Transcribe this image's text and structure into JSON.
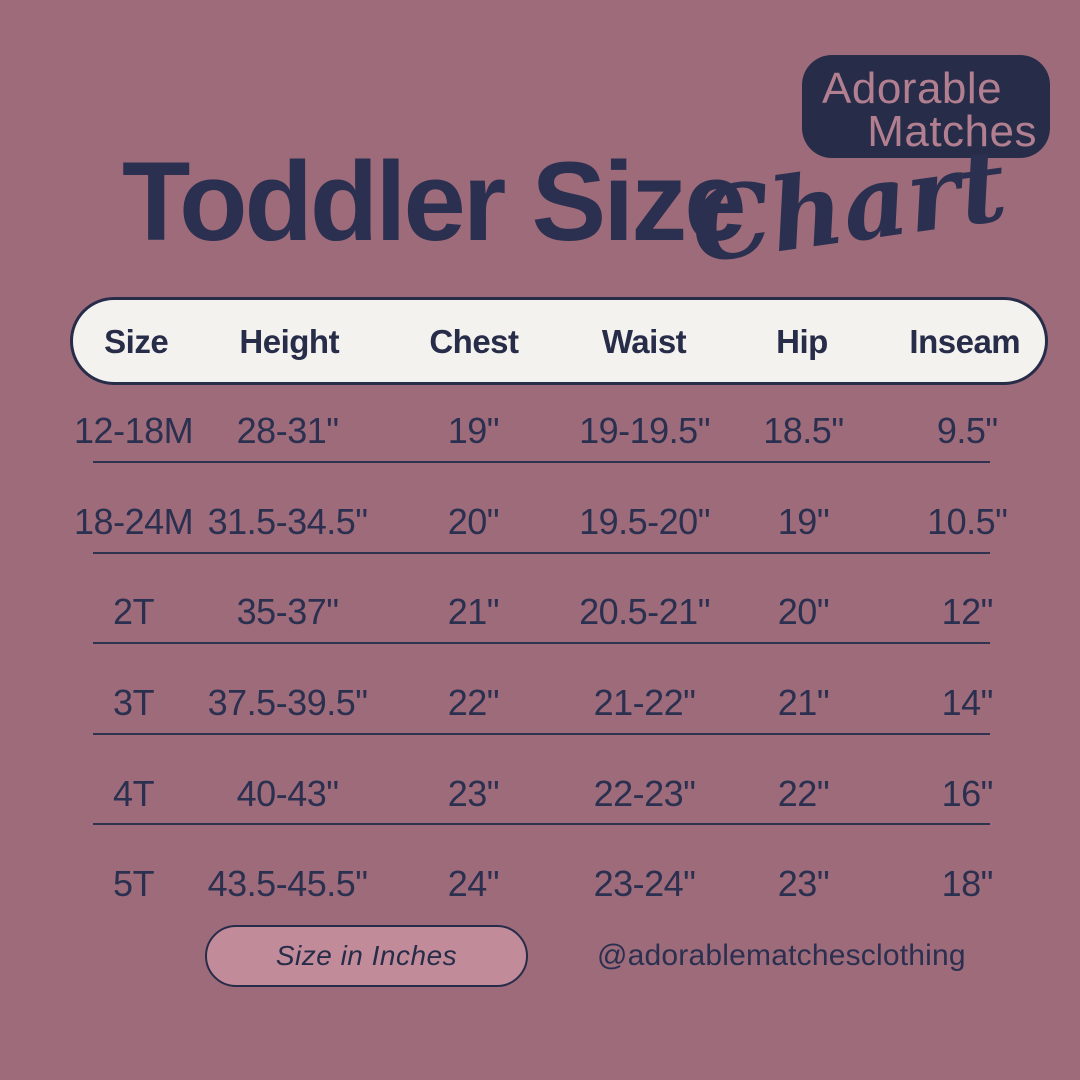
{
  "logo": {
    "line1": "Adorable",
    "line2": "Matches"
  },
  "title": {
    "main": "Toddler Size",
    "script": "Chart"
  },
  "table": {
    "headers": [
      "Size",
      "Height",
      "Chest",
      "Waist",
      "Hip",
      "Inseam"
    ],
    "rows": [
      [
        "12-18M",
        "28-31\"",
        "19\"",
        "19-19.5\"",
        "18.5\"",
        "9.5\""
      ],
      [
        "18-24M",
        "31.5-34.5\"",
        "20\"",
        "19.5-20\"",
        "19\"",
        "10.5\""
      ],
      [
        "2T",
        "35-37\"",
        "21\"",
        "20.5-21\"",
        "20\"",
        "12\""
      ],
      [
        "3T",
        "37.5-39.5\"",
        "22\"",
        "21-22\"",
        "21\"",
        "14\""
      ],
      [
        "4T",
        "40-43\"",
        "23\"",
        "22-23\"",
        "22\"",
        "16\""
      ],
      [
        "5T",
        "43.5-45.5\"",
        "24\"",
        "23-24\"",
        "23\"",
        "18\""
      ]
    ]
  },
  "footer": {
    "unit_label": "Size in Inches",
    "handle": "@adorablematchesclothing"
  },
  "colors": {
    "background": "#9e6b7a",
    "navy": "#2b3050",
    "badge_navy": "#272c49",
    "badge_text_pink": "#b17f90",
    "header_pill_fill": "#f4f2ef",
    "unit_pill_fill": "#c28b99"
  },
  "chart_data": {
    "type": "table",
    "title": "Toddler Size Chart",
    "unit": "inches",
    "columns": [
      "Size",
      "Height",
      "Chest",
      "Waist",
      "Hip",
      "Inseam"
    ],
    "rows": [
      {
        "size": "12-18M",
        "height": "28-31",
        "chest": "19",
        "waist": "19-19.5",
        "hip": "18.5",
        "inseam": "9.5"
      },
      {
        "size": "18-24M",
        "height": "31.5-34.5",
        "chest": "20",
        "waist": "19.5-20",
        "hip": "19",
        "inseam": "10.5"
      },
      {
        "size": "2T",
        "height": "35-37",
        "chest": "21",
        "waist": "20.5-21",
        "hip": "20",
        "inseam": "12"
      },
      {
        "size": "3T",
        "height": "37.5-39.5",
        "chest": "22",
        "waist": "21-22",
        "hip": "21",
        "inseam": "14"
      },
      {
        "size": "4T",
        "height": "40-43",
        "chest": "23",
        "waist": "22-23",
        "hip": "22",
        "inseam": "16"
      },
      {
        "size": "5T",
        "height": "43.5-45.5",
        "chest": "24",
        "waist": "23-24",
        "hip": "23",
        "inseam": "18"
      }
    ]
  }
}
